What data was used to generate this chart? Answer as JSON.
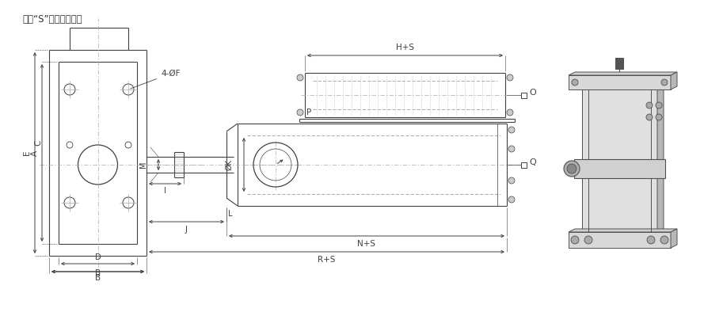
{
  "bg_color": "#ffffff",
  "line_color": "#444444",
  "dim_color": "#444444",
  "center_color": "#888888",
  "note_text": "注：“S”為缸的總行程",
  "label_A": "A",
  "label_B": "B",
  "label_C": "C",
  "label_D": "D",
  "label_E": "E",
  "label_F": "4-ØF",
  "label_H": "H+S",
  "label_I": "I",
  "label_J": "J",
  "label_K": "ØK",
  "label_L": "L",
  "label_M": "M",
  "label_N": "N+S",
  "label_O": "O",
  "label_P": "P",
  "label_Q": "Q",
  "label_R": "R+S"
}
